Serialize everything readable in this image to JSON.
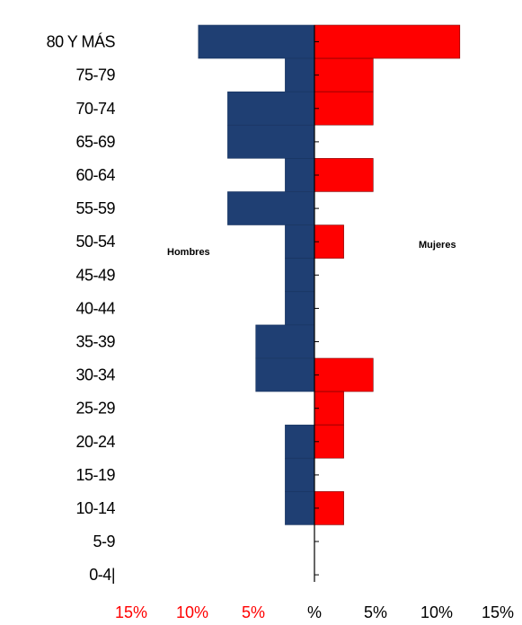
{
  "chart_data": {
    "type": "bar",
    "orientation": "horizontal",
    "subtype": "population-pyramid",
    "categories": [
      "80 Y MÁS",
      "75-79",
      "70-74",
      "65-69",
      "60-64",
      "55-59",
      "50-54",
      "45-49",
      "40-44",
      "35-39",
      "30-34",
      "25-29",
      "20-24",
      "15-19",
      "10-14",
      "5-9",
      "0-4|"
    ],
    "series": [
      {
        "name": "Hombres",
        "side": "left",
        "color": "#1F3F73",
        "values": [
          9.5,
          2.4,
          7.1,
          7.1,
          2.4,
          7.1,
          2.4,
          2.4,
          2.4,
          4.8,
          4.8,
          0,
          2.4,
          2.4,
          2.4,
          0,
          0
        ]
      },
      {
        "name": "Mujeres",
        "side": "right",
        "color": "#FF0000",
        "values": [
          11.9,
          4.8,
          4.8,
          0,
          4.8,
          0,
          2.4,
          0,
          0,
          0,
          4.8,
          2.4,
          2.4,
          0,
          2.4,
          0,
          0
        ]
      }
    ],
    "xlim": [
      -15,
      15
    ],
    "x_ticks": [
      {
        "value": -15,
        "label": "15%",
        "color": "#FF0000"
      },
      {
        "value": -10,
        "label": "10%",
        "color": "#FF0000"
      },
      {
        "value": -5,
        "label": "5%",
        "color": "#FF0000"
      },
      {
        "value": 0,
        "label": "%",
        "color": "#000000"
      },
      {
        "value": 5,
        "label": "5%",
        "color": "#000000"
      },
      {
        "value": 10,
        "label": "10%",
        "color": "#000000"
      },
      {
        "value": 15,
        "label": "15%",
        "color": "#000000"
      }
    ],
    "legend_placement": "inside-middle",
    "grid": false
  }
}
